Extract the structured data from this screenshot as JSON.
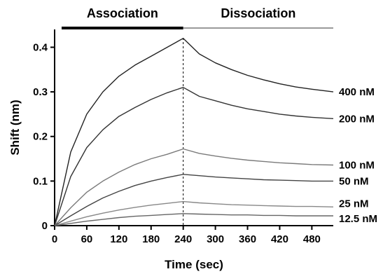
{
  "chart_data": {
    "type": "line",
    "title": "",
    "xlabel": "Time (sec)",
    "ylabel": "Shift (nm)",
    "xlim": [
      0,
      520
    ],
    "ylim": [
      0,
      0.44
    ],
    "xticks": [
      0,
      60,
      120,
      180,
      240,
      300,
      360,
      420,
      480
    ],
    "yticks": [
      0,
      0.1,
      0.2,
      0.3,
      0.4
    ],
    "ytick_labels": [
      "0",
      "0.1",
      "0.2",
      "0.3",
      "0.4"
    ],
    "grid": false,
    "phases": [
      {
        "label": "Association",
        "x_start": 0,
        "x_end": 240
      },
      {
        "label": "Dissociation",
        "x_start": 240,
        "x_end": 520
      }
    ],
    "divider_x": 240,
    "series": [
      {
        "name": "400 nM",
        "color": "#222222",
        "values": {
          "x": [
            0,
            30,
            60,
            90,
            120,
            150,
            180,
            210,
            240,
            270,
            300,
            330,
            360,
            390,
            420,
            450,
            480,
            520
          ],
          "y": [
            0,
            0.165,
            0.25,
            0.3,
            0.335,
            0.36,
            0.38,
            0.4,
            0.42,
            0.385,
            0.365,
            0.35,
            0.337,
            0.327,
            0.318,
            0.311,
            0.306,
            0.3
          ]
        }
      },
      {
        "name": "200 nM",
        "color": "#333333",
        "values": {
          "x": [
            0,
            30,
            60,
            90,
            120,
            150,
            180,
            210,
            240,
            270,
            300,
            330,
            360,
            390,
            420,
            450,
            480,
            520
          ],
          "y": [
            0,
            0.11,
            0.175,
            0.215,
            0.245,
            0.265,
            0.283,
            0.298,
            0.31,
            0.29,
            0.28,
            0.27,
            0.262,
            0.256,
            0.25,
            0.246,
            0.243,
            0.24
          ]
        }
      },
      {
        "name": "100 nM",
        "color": "#7a7a7a",
        "values": {
          "x": [
            0,
            30,
            60,
            90,
            120,
            150,
            180,
            210,
            240,
            270,
            300,
            330,
            360,
            390,
            420,
            450,
            480,
            520
          ],
          "y": [
            0,
            0.04,
            0.075,
            0.1,
            0.12,
            0.137,
            0.15,
            0.16,
            0.172,
            0.162,
            0.156,
            0.151,
            0.147,
            0.144,
            0.141,
            0.139,
            0.137,
            0.136
          ]
        }
      },
      {
        "name": "50 nM",
        "color": "#444444",
        "values": {
          "x": [
            0,
            30,
            60,
            90,
            120,
            150,
            180,
            210,
            240,
            270,
            300,
            330,
            360,
            390,
            420,
            450,
            480,
            520
          ],
          "y": [
            0,
            0.022,
            0.043,
            0.062,
            0.077,
            0.09,
            0.1,
            0.108,
            0.115,
            0.112,
            0.109,
            0.107,
            0.105,
            0.103,
            0.102,
            0.101,
            0.1,
            0.1
          ]
        }
      },
      {
        "name": "25 nM",
        "color": "#888888",
        "values": {
          "x": [
            0,
            30,
            60,
            90,
            120,
            150,
            180,
            210,
            240,
            270,
            300,
            330,
            360,
            390,
            420,
            450,
            480,
            520
          ],
          "y": [
            0,
            0.01,
            0.02,
            0.028,
            0.035,
            0.041,
            0.046,
            0.05,
            0.054,
            0.051,
            0.049,
            0.047,
            0.046,
            0.045,
            0.044,
            0.043,
            0.043,
            0.042
          ]
        }
      },
      {
        "name": "12.5 nM",
        "color": "#666666",
        "values": {
          "x": [
            0,
            30,
            60,
            90,
            120,
            150,
            180,
            210,
            240,
            270,
            300,
            330,
            360,
            390,
            420,
            450,
            480,
            520
          ],
          "y": [
            0,
            0.005,
            0.01,
            0.014,
            0.018,
            0.021,
            0.023,
            0.025,
            0.027,
            0.026,
            0.025,
            0.024,
            0.024,
            0.023,
            0.023,
            0.022,
            0.022,
            0.022
          ]
        }
      }
    ]
  }
}
